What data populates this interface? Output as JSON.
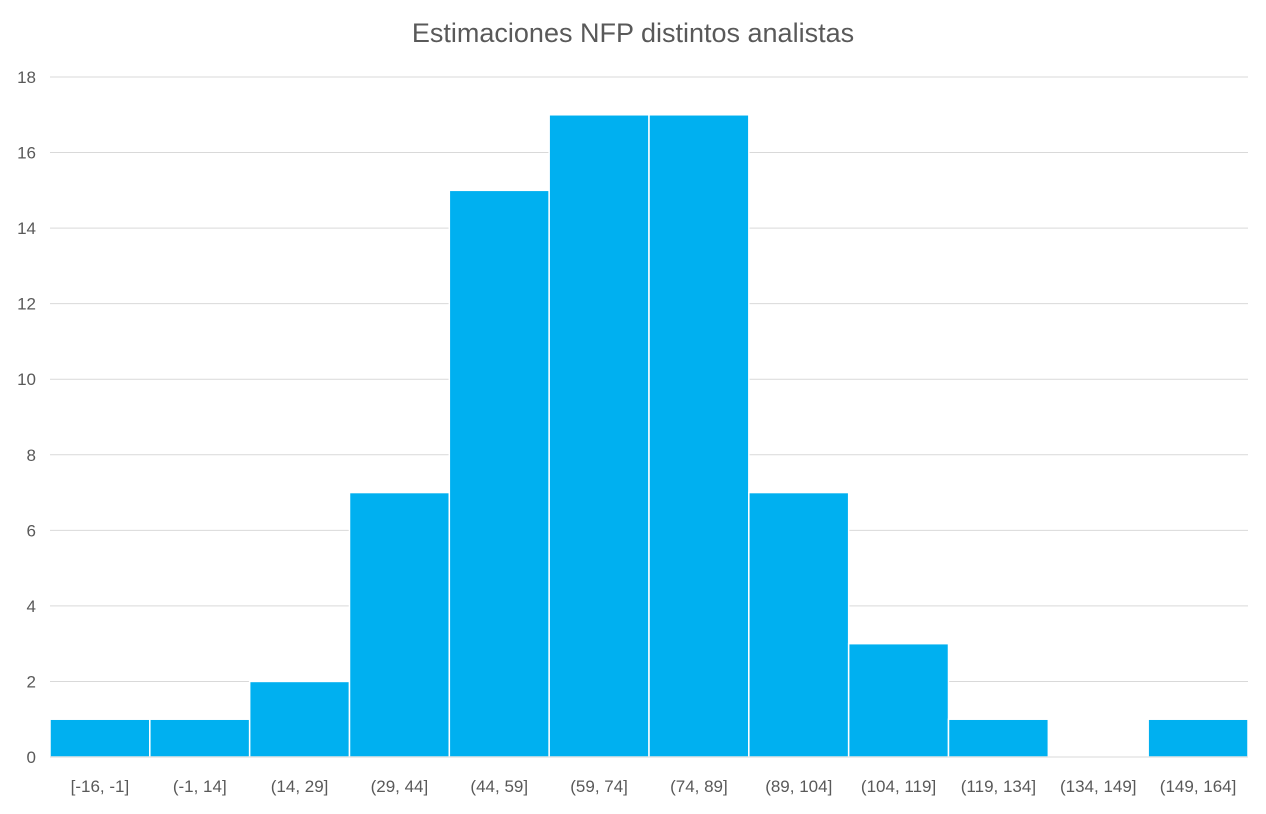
{
  "chart_data": {
    "type": "bar",
    "title": "Estimaciones NFP distintos analistas",
    "xlabel": "",
    "ylabel": "",
    "categories": [
      "[-16, -1]",
      "(-1, 14]",
      "(14, 29]",
      "(29, 44]",
      "(44, 59]",
      "(59, 74]",
      "(74, 89]",
      "(89, 104]",
      "(104, 119]",
      "(119, 134]",
      "(134, 149]",
      "(149, 164]"
    ],
    "values": [
      1,
      1,
      2,
      7,
      15,
      17,
      17,
      7,
      3,
      1,
      0,
      1
    ],
    "ylim": [
      0,
      18
    ],
    "yticks": [
      0,
      2,
      4,
      6,
      8,
      10,
      12,
      14,
      16,
      18
    ],
    "grid": true,
    "legend": "none",
    "bar_color": "#00B0F0"
  }
}
